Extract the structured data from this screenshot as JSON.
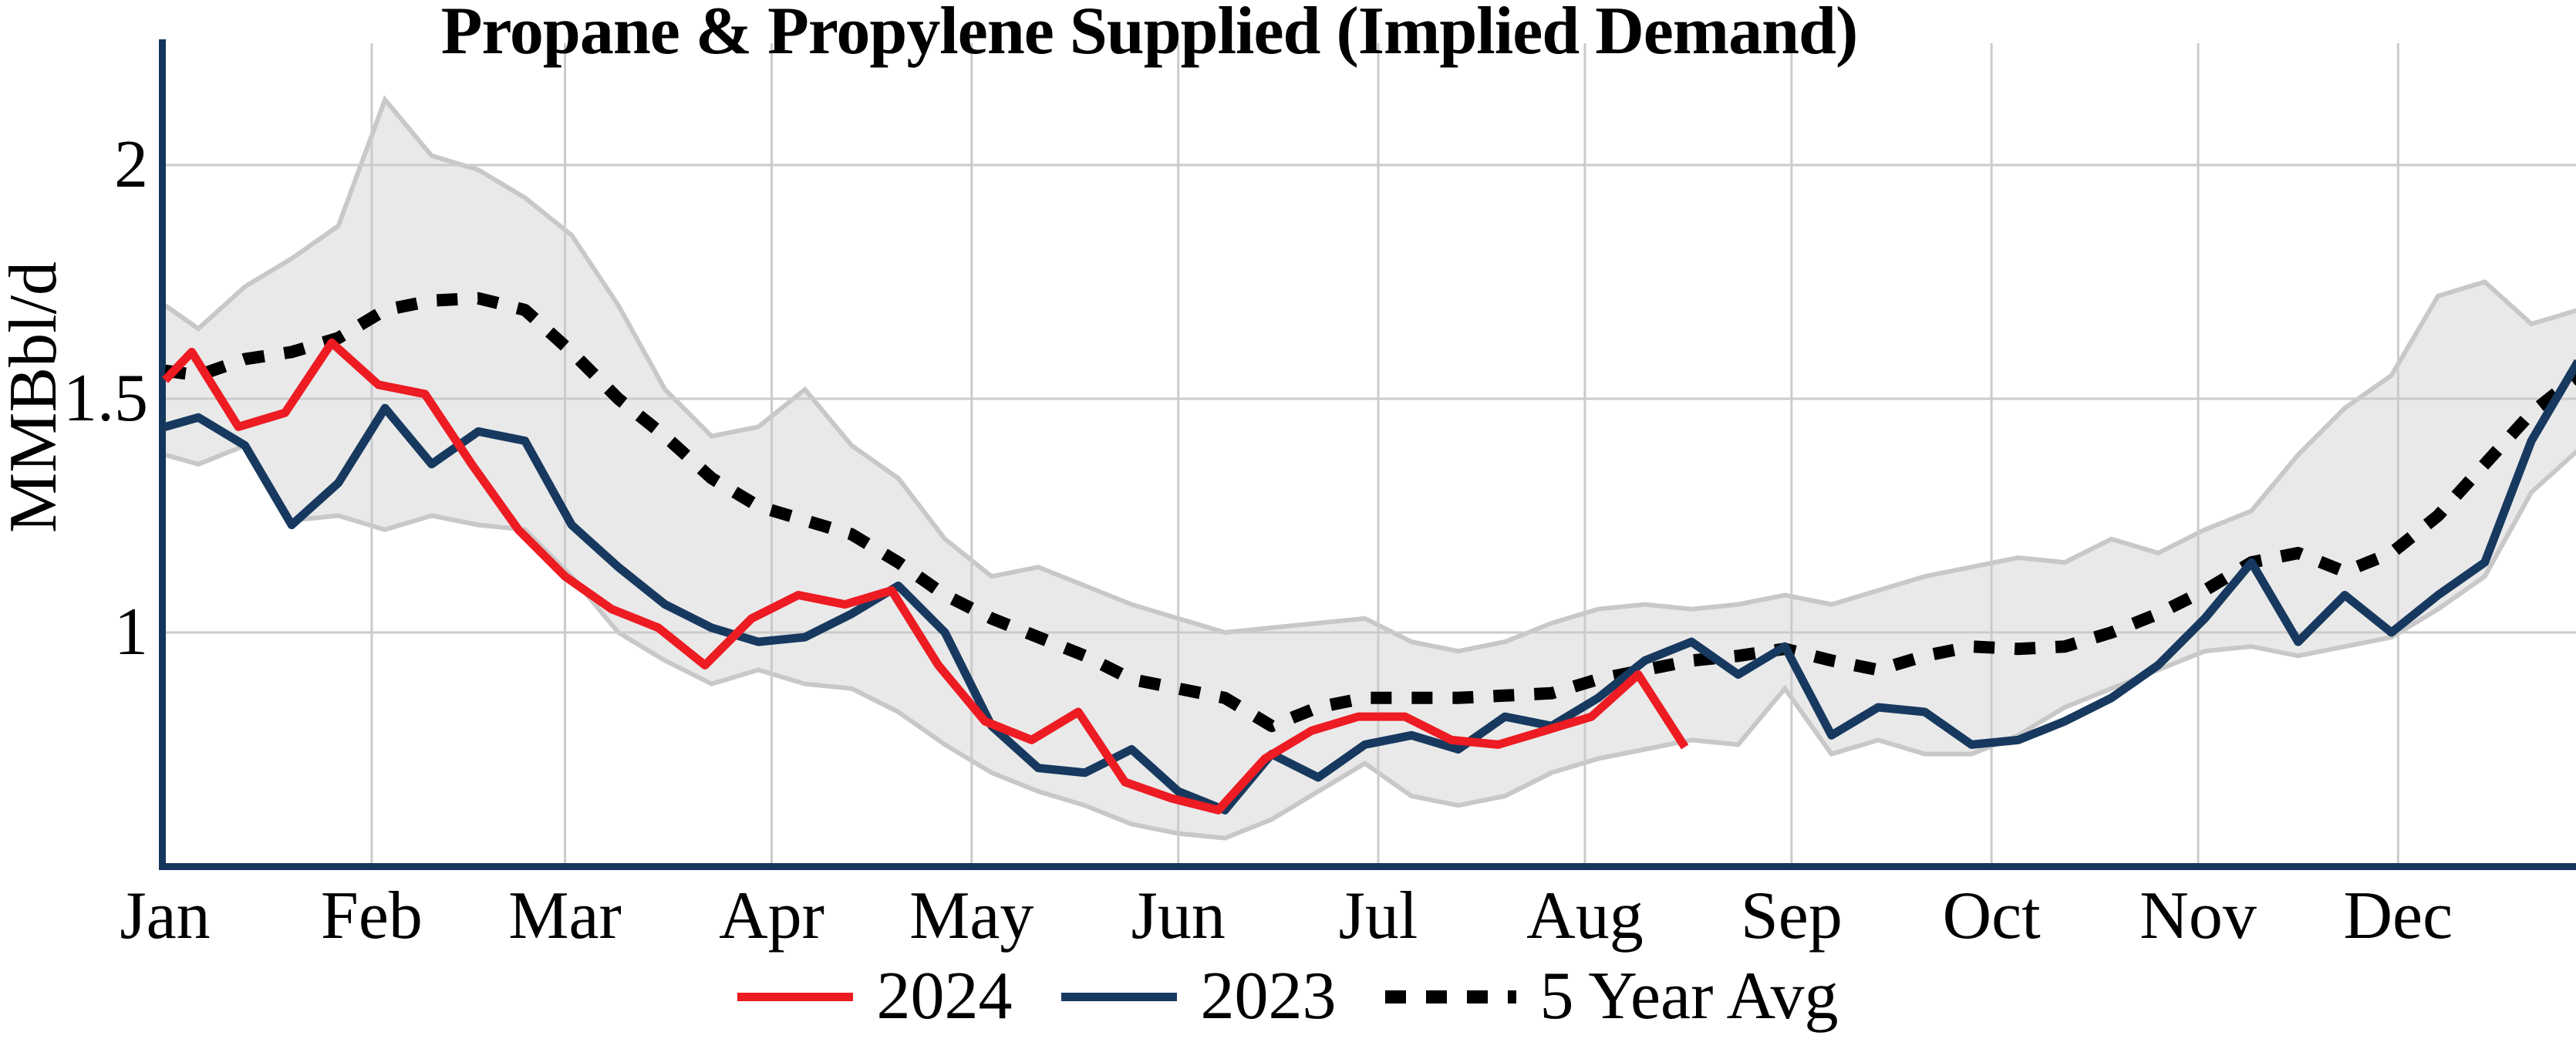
{
  "title": "Propane & Propylene Supplied (Implied Demand)",
  "y_axis": {
    "label": "MMBbl/d",
    "ticks": [
      "2",
      "1.5",
      "1"
    ],
    "tick_values": [
      2,
      1.5,
      1
    ]
  },
  "x_axis": {
    "months": [
      "Jan",
      "Feb",
      "Mar",
      "Apr",
      "May",
      "Jun",
      "Jul",
      "Aug",
      "Sep",
      "Oct",
      "Nov",
      "Dec"
    ],
    "month_start_days": [
      1,
      32,
      61,
      92,
      122,
      153,
      183,
      214,
      245,
      275,
      306,
      336
    ]
  },
  "legend": {
    "items": [
      {
        "label": "2024",
        "color": "#ed1b22",
        "style": "solid"
      },
      {
        "label": "2023",
        "color": "#17395f",
        "style": "solid"
      },
      {
        "label": "5 Year Avg",
        "color": "#000000",
        "style": "dotted"
      }
    ]
  },
  "colors": {
    "background": "#ffffff",
    "band_fill": "#e9e9e9",
    "band_edge": "#c8c8c8",
    "grid": "#cbcbcb",
    "spine": "#14365c",
    "red": "#ed1b22",
    "navy": "#17395f",
    "black": "#000000"
  },
  "chart_data": {
    "type": "line",
    "title": "Propane & Propylene Supplied (Implied Demand)",
    "ylabel": "MMBbl/d",
    "units": "MMBbl/d",
    "ylim": [
      0.5,
      2.26
    ],
    "x_unit": "day_of_year",
    "xlim": [
      1,
      366
    ],
    "grid": "both",
    "legend_position": "bottom",
    "series": [
      {
        "name": "2024",
        "color": "#ed1b22",
        "line": "solid",
        "x": [
          1,
          5,
          12,
          19,
          26,
          33,
          40,
          47,
          54,
          61,
          68,
          75,
          82,
          89,
          96,
          103,
          110,
          117,
          124,
          131,
          138,
          145,
          152,
          159,
          166,
          173,
          180,
          187,
          194,
          201,
          208,
          215,
          222,
          229
        ],
        "y": [
          1.54,
          1.6,
          1.44,
          1.47,
          1.62,
          1.53,
          1.51,
          1.36,
          1.22,
          1.12,
          1.05,
          1.01,
          0.93,
          1.03,
          1.08,
          1.06,
          1.09,
          0.93,
          0.81,
          0.77,
          0.83,
          0.68,
          0.645,
          0.62,
          0.73,
          0.79,
          0.82,
          0.82,
          0.77,
          0.76,
          0.79,
          0.82,
          0.91,
          0.755
        ]
      },
      {
        "name": "2023",
        "color": "#17395f",
        "line": "solid",
        "x": [
          1,
          6,
          13,
          20,
          27,
          34,
          41,
          48,
          55,
          62,
          69,
          76,
          83,
          90,
          97,
          104,
          111,
          118,
          125,
          132,
          139,
          146,
          153,
          160,
          167,
          174,
          181,
          188,
          195,
          202,
          209,
          216,
          223,
          230,
          237,
          244,
          251,
          258,
          265,
          272,
          279,
          286,
          293,
          300,
          307,
          314,
          321,
          328,
          335,
          342,
          349,
          356,
          363
        ],
        "y": [
          1.44,
          1.46,
          1.4,
          1.23,
          1.32,
          1.48,
          1.36,
          1.43,
          1.41,
          1.23,
          1.14,
          1.06,
          1.01,
          0.98,
          0.99,
          1.04,
          1.1,
          1.0,
          0.8,
          0.71,
          0.7,
          0.75,
          0.66,
          0.62,
          0.74,
          0.69,
          0.76,
          0.78,
          0.75,
          0.82,
          0.8,
          0.86,
          0.94,
          0.98,
          0.91,
          0.97,
          0.78,
          0.84,
          0.83,
          0.76,
          0.77,
          0.81,
          0.86,
          0.93,
          1.03,
          1.15,
          0.98,
          1.08,
          1.0,
          1.08,
          1.15,
          1.41,
          1.58
        ]
      },
      {
        "name": "5 Year Avg",
        "color": "#000000",
        "line": "dotted",
        "x": [
          1,
          6,
          13,
          20,
          27,
          34,
          41,
          48,
          55,
          62,
          69,
          76,
          83,
          90,
          97,
          104,
          111,
          118,
          125,
          132,
          139,
          146,
          153,
          160,
          167,
          174,
          181,
          188,
          195,
          202,
          209,
          216,
          223,
          230,
          237,
          244,
          251,
          258,
          265,
          272,
          279,
          286,
          293,
          300,
          307,
          314,
          321,
          328,
          335,
          342,
          349,
          356,
          363
        ],
        "y": [
          1.56,
          1.55,
          1.585,
          1.6,
          1.63,
          1.69,
          1.71,
          1.715,
          1.69,
          1.6,
          1.5,
          1.42,
          1.33,
          1.27,
          1.24,
          1.21,
          1.15,
          1.08,
          1.03,
          0.99,
          0.95,
          0.9,
          0.88,
          0.86,
          0.8,
          0.84,
          0.86,
          0.86,
          0.86,
          0.865,
          0.87,
          0.9,
          0.92,
          0.94,
          0.95,
          0.965,
          0.94,
          0.92,
          0.95,
          0.97,
          0.965,
          0.97,
          1.0,
          1.04,
          1.09,
          1.15,
          1.17,
          1.13,
          1.17,
          1.25,
          1.36,
          1.47,
          1.55
        ]
      }
    ],
    "band": {
      "name": "5 year range",
      "fill": "#e9e9e9",
      "edge_color": "#c8c8c8",
      "x": [
        1,
        6,
        13,
        20,
        27,
        34,
        41,
        48,
        55,
        62,
        69,
        76,
        83,
        90,
        97,
        104,
        111,
        118,
        125,
        132,
        139,
        146,
        153,
        160,
        167,
        174,
        181,
        188,
        195,
        202,
        209,
        216,
        223,
        230,
        237,
        244,
        251,
        258,
        265,
        272,
        279,
        286,
        293,
        300,
        307,
        314,
        321,
        328,
        335,
        342,
        349,
        356,
        363
      ],
      "top": [
        1.7,
        1.65,
        1.74,
        1.8,
        1.87,
        2.14,
        2.02,
        1.99,
        1.93,
        1.85,
        1.7,
        1.52,
        1.42,
        1.44,
        1.52,
        1.4,
        1.33,
        1.2,
        1.12,
        1.14,
        1.1,
        1.06,
        1.03,
        1.0,
        1.01,
        1.02,
        1.03,
        0.98,
        0.96,
        0.98,
        1.02,
        1.05,
        1.06,
        1.05,
        1.06,
        1.08,
        1.06,
        1.09,
        1.12,
        1.14,
        1.16,
        1.15,
        1.2,
        1.17,
        1.22,
        1.26,
        1.38,
        1.48,
        1.55,
        1.72,
        1.75,
        1.66,
        1.69
      ],
      "bottom": [
        1.38,
        1.36,
        1.4,
        1.24,
        1.25,
        1.22,
        1.25,
        1.23,
        1.22,
        1.12,
        1.0,
        0.94,
        0.89,
        0.92,
        0.89,
        0.88,
        0.83,
        0.76,
        0.7,
        0.66,
        0.63,
        0.59,
        0.57,
        0.56,
        0.6,
        0.66,
        0.72,
        0.65,
        0.63,
        0.65,
        0.7,
        0.73,
        0.75,
        0.77,
        0.76,
        0.88,
        0.74,
        0.77,
        0.74,
        0.74,
        0.78,
        0.84,
        0.88,
        0.92,
        0.96,
        0.97,
        0.95,
        0.97,
        0.99,
        1.05,
        1.12,
        1.3,
        1.39
      ]
    }
  }
}
